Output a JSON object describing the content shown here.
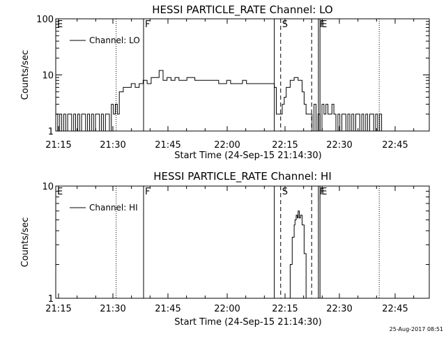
{
  "footer": {
    "timestamp": "25-Aug-2017 08:51"
  },
  "chart_data": [
    {
      "type": "line",
      "title": "HESSI PARTICLE_RATE Channel: LO",
      "xlabel": "Start Time (24-Sep-15 21:14:30)",
      "ylabel": "Counts/sec",
      "x_unit": "minutes after 21:14:30",
      "xlim": [
        0,
        94
      ],
      "ylim": [
        1,
        100
      ],
      "yscale": "log",
      "x_tick_labels": [
        "21:15",
        "21:30",
        "21:45",
        "22:00",
        "22:15",
        "22:30",
        "22:45"
      ],
      "y_tick_labels": [
        "1",
        "10",
        "100"
      ],
      "legend": {
        "entries": [
          "Channel: LO"
        ],
        "position": "top-left"
      },
      "grid": false,
      "markers": [
        {
          "label": "E",
          "style": "solid",
          "x": 0
        },
        {
          "label": "",
          "style": "dotted",
          "x": 15.2
        },
        {
          "label": "F",
          "style": "solid",
          "x": 22.1
        },
        {
          "label": "",
          "style": "solid",
          "x": 55.0
        },
        {
          "label": "S",
          "style": "dashed",
          "x": 56.6
        },
        {
          "label": "",
          "style": "dashed",
          "x": 64.4
        },
        {
          "label": "F",
          "style": "solid",
          "x": 66.1
        },
        {
          "label": "E",
          "style": "solid",
          "x": 66.5
        },
        {
          "label": "",
          "style": "dotted",
          "x": 81.4
        }
      ],
      "series": [
        {
          "name": "Channel: LO",
          "x": [
            0,
            0.5,
            1,
            1.5,
            2,
            2.5,
            3,
            3.5,
            4,
            4.5,
            5,
            5.5,
            6,
            6.5,
            7,
            7.5,
            8,
            8.5,
            9,
            9.5,
            10,
            10.5,
            11,
            11.5,
            12,
            12.5,
            13,
            13.5,
            14,
            14.5,
            15,
            15.5,
            16,
            17,
            18,
            19,
            20,
            21,
            22,
            23,
            24,
            25,
            26,
            27,
            28,
            29,
            30,
            31,
            32,
            33,
            34,
            35,
            36,
            37,
            38,
            39,
            40,
            41,
            42,
            43,
            44,
            45,
            46,
            47,
            48,
            49,
            50,
            51,
            52,
            53,
            54,
            55,
            55.5,
            56,
            56.5,
            57,
            57.5,
            58,
            59,
            60,
            61,
            62,
            62.5,
            63,
            63.5,
            64,
            64.5,
            65,
            65.5,
            66,
            66.5,
            67,
            67.5,
            68,
            68.5,
            69,
            69.5,
            70,
            70.5,
            71,
            71.5,
            72,
            72.5,
            73,
            73.5,
            74,
            74.5,
            75,
            75.5,
            76,
            76.5,
            77,
            77.5,
            78,
            78.5,
            79,
            79.5,
            80,
            80.5,
            81,
            81.5,
            82
          ],
          "values": [
            2,
            1,
            2,
            1,
            2,
            1,
            2,
            2,
            1,
            2,
            1,
            2,
            1,
            2,
            2,
            1,
            2,
            1,
            2,
            1,
            2,
            2,
            1,
            2,
            1,
            2,
            2,
            1,
            3,
            2,
            3,
            2,
            5,
            6,
            6,
            7,
            6,
            7,
            8,
            7,
            9,
            9,
            12,
            8,
            9,
            8,
            9,
            8,
            8,
            9,
            9,
            8,
            8,
            8,
            8,
            8,
            8,
            7,
            7,
            8,
            7,
            7,
            7,
            8,
            7,
            7,
            7,
            7,
            7,
            7,
            7,
            6,
            2,
            2,
            2,
            3,
            4,
            6,
            8,
            9,
            8,
            5,
            3,
            2,
            2,
            2,
            1,
            3,
            1,
            2,
            1,
            3,
            2,
            3,
            2,
            2,
            3,
            2,
            1,
            2,
            1,
            2,
            2,
            1,
            2,
            1,
            2,
            1,
            2,
            2,
            1,
            2,
            1,
            2,
            1,
            2,
            2,
            1,
            2,
            1,
            2,
            1
          ]
        }
      ]
    },
    {
      "type": "line",
      "title": "HESSI PARTICLE_RATE Channel: HI",
      "xlabel": "Start Time (24-Sep-15 21:14:30)",
      "ylabel": "Counts/sec",
      "x_unit": "minutes after 21:14:30",
      "xlim": [
        0,
        94
      ],
      "ylim": [
        1,
        10
      ],
      "yscale": "log",
      "x_tick_labels": [
        "21:15",
        "21:30",
        "21:45",
        "22:00",
        "22:15",
        "22:30",
        "22:45"
      ],
      "y_tick_labels": [
        "1",
        "10"
      ],
      "legend": {
        "entries": [
          "Channel: HI"
        ],
        "position": "top-left"
      },
      "grid": false,
      "markers": [
        {
          "label": "E",
          "style": "solid",
          "x": 0
        },
        {
          "label": "",
          "style": "dotted",
          "x": 15.2
        },
        {
          "label": "F",
          "style": "solid",
          "x": 22.1
        },
        {
          "label": "",
          "style": "solid",
          "x": 55.0
        },
        {
          "label": "S",
          "style": "dashed",
          "x": 56.6
        },
        {
          "label": "",
          "style": "dashed",
          "x": 64.4
        },
        {
          "label": "F",
          "style": "solid",
          "x": 66.1
        },
        {
          "label": "E",
          "style": "solid",
          "x": 66.5
        },
        {
          "label": "",
          "style": "dotted",
          "x": 81.4
        }
      ],
      "series": [
        {
          "name": "Channel: HI",
          "x": [
            58.5,
            59,
            59.5,
            60,
            60.2,
            60.5,
            60.8,
            61,
            61.3,
            61.6,
            62,
            62.5,
            63
          ],
          "values": [
            1,
            2,
            3.5,
            4.5,
            5,
            5.5,
            5.2,
            6,
            5.2,
            5.5,
            4.5,
            2.5,
            1
          ]
        }
      ]
    }
  ]
}
